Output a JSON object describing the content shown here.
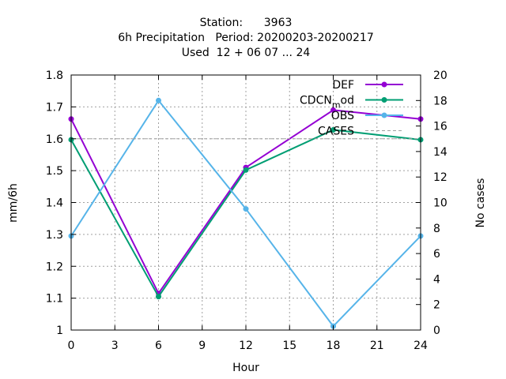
{
  "chart_data": {
    "type": "line",
    "title_lines": [
      "Station:      3963",
      "6h Precipitation   Period: 20200203-20200217",
      "Used  12 + 06 07 ... 24"
    ],
    "xlabel": "Hour",
    "ylabel": "mm/6h",
    "y2label": "No cases",
    "xlim": [
      0,
      24
    ],
    "ylim": [
      1,
      1.8
    ],
    "y2lim": [
      0,
      20
    ],
    "xticks": [
      0,
      3,
      6,
      9,
      12,
      15,
      18,
      21,
      24
    ],
    "yticks": [
      1,
      1.1,
      1.2,
      1.3,
      1.4,
      1.5,
      1.6,
      1.7,
      1.8
    ],
    "y2ticks": [
      0,
      2,
      4,
      6,
      8,
      10,
      12,
      14,
      16,
      18,
      20
    ],
    "grid": true,
    "legend_position": "top-right",
    "series": [
      {
        "name": "DEF",
        "color": "#9400d3",
        "marker": "circle",
        "x": [
          0,
          6,
          12,
          18,
          24
        ],
        "y": [
          1.662,
          1.115,
          1.51,
          1.69,
          1.662
        ]
      },
      {
        "name": "CDCN_mod",
        "legend_text": "CDCN",
        "legend_sub": "m",
        "legend_rest": "od",
        "color": "#009e73",
        "marker": "circle",
        "x": [
          0,
          6,
          12,
          18,
          24
        ],
        "y": [
          1.597,
          1.105,
          1.502,
          1.628,
          1.597
        ]
      },
      {
        "name": "OBS",
        "color": "#56b4e9",
        "marker": "circle",
        "x": [
          0,
          6,
          12,
          18,
          24
        ],
        "y": [
          1.295,
          1.72,
          1.38,
          1.012,
          1.295
        ]
      },
      {
        "name": "CASES",
        "color": "#a0a0a0",
        "dashed": true,
        "axis": "y2",
        "x": [
          0,
          24
        ],
        "y": [
          15,
          15
        ]
      }
    ]
  }
}
